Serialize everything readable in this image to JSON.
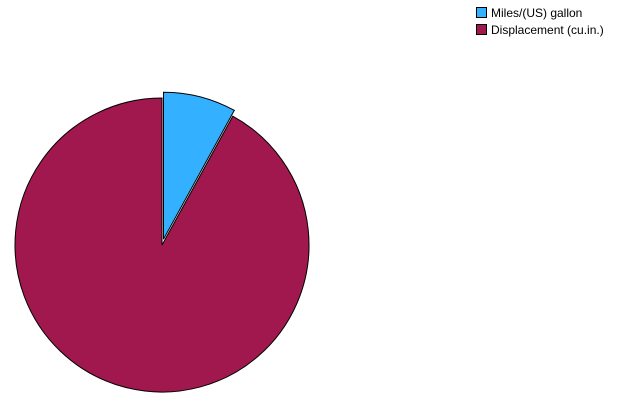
{
  "chart_data": {
    "type": "pie",
    "title": "",
    "categories": [
      "Miles/(US) gallon",
      "Displacement (cu.in.)"
    ],
    "values": [
      8,
      92
    ],
    "colors": [
      "#33b0ff",
      "#a0184e"
    ],
    "exploded": [
      true,
      false
    ],
    "start_angle_deg": 0,
    "direction": "clockwise",
    "legend": {
      "position": "top-right",
      "items": [
        {
          "label": "Miles/(US) gallon",
          "color": "#33b0ff"
        },
        {
          "label": "Displacement (cu.in.)",
          "color": "#a0184e"
        }
      ]
    }
  }
}
